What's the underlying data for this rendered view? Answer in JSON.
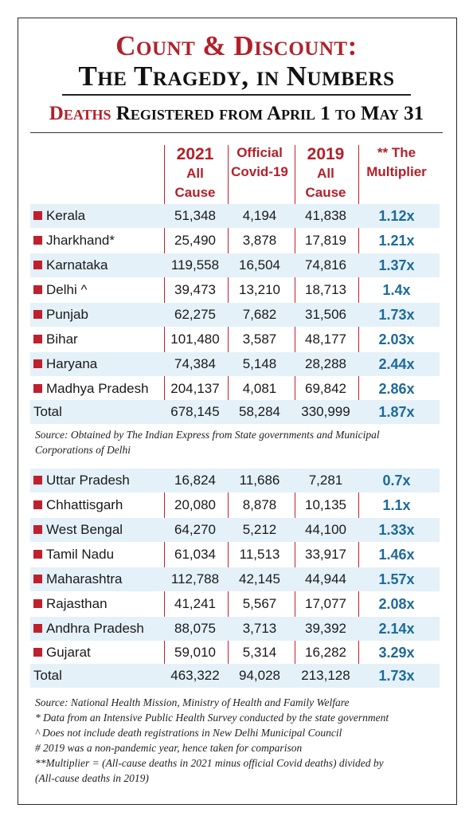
{
  "header": {
    "title_line1": "Count & Discount:",
    "title_line2": "The Tragedy, in Numbers",
    "subtitle_red": "Deaths",
    "subtitle_rest": " Registered from April 1 to May 31"
  },
  "columns": {
    "c1_big": "2021",
    "c1_small1": "All",
    "c1_small2": "Cause",
    "c2_line1": "Official",
    "c2_line2": "Covid-19",
    "c3_big": "2019",
    "c3_small1": "All",
    "c3_small2": "Cause",
    "c4_line1": "** The",
    "c4_line2": "Multiplier"
  },
  "table1": {
    "rows": [
      {
        "state": "Kerala",
        "y2021": "51,348",
        "covid": "4,194",
        "y2019": "41,838",
        "mult": "1.12x"
      },
      {
        "state": "Jharkhand*",
        "y2021": "25,490",
        "covid": "3,878",
        "y2019": "17,819",
        "mult": "1.21x"
      },
      {
        "state": "Karnataka",
        "y2021": "119,558",
        "covid": "16,504",
        "y2019": "74,816",
        "mult": "1.37x"
      },
      {
        "state": "Delhi ^",
        "y2021": "39,473",
        "covid": "13,210",
        "y2019": "18,713",
        "mult": "1.4x"
      },
      {
        "state": "Punjab",
        "y2021": "62,275",
        "covid": "7,682",
        "y2019": "31,506",
        "mult": "1.73x"
      },
      {
        "state": "Bihar",
        "y2021": "101,480",
        "covid": "3,587",
        "y2019": "48,177",
        "mult": "2.03x"
      },
      {
        "state": "Haryana",
        "y2021": "74,384",
        "covid": "5,148",
        "y2019": "28,288",
        "mult": "2.44x"
      },
      {
        "state": "Madhya Pradesh",
        "y2021": "204,137",
        "covid": "4,081",
        "y2019": "69,842",
        "mult": "2.86x"
      }
    ],
    "total": {
      "label": "Total",
      "y2021": "678,145",
      "covid": "58,284",
      "y2019": "330,999",
      "mult": "1.87x"
    },
    "source_line1": "Source: Obtained by The Indian Express from State governments and Municipal",
    "source_line2": "Corporations of Delhi"
  },
  "table2": {
    "rows": [
      {
        "state": "Uttar Pradesh",
        "y2021": "16,824",
        "covid": "11,686",
        "y2019": "7,281",
        "mult": "0.7x"
      },
      {
        "state": "Chhattisgarh",
        "y2021": "20,080",
        "covid": "8,878",
        "y2019": "10,135",
        "mult": "1.1x"
      },
      {
        "state": "West Bengal",
        "y2021": "64,270",
        "covid": "5,212",
        "y2019": "44,100",
        "mult": "1.33x"
      },
      {
        "state": "Tamil Nadu",
        "y2021": "61,034",
        "covid": "11,513",
        "y2019": "33,917",
        "mult": "1.46x"
      },
      {
        "state": "Maharashtra",
        "y2021": "112,788",
        "covid": "42,145",
        "y2019": "44,944",
        "mult": "1.57x"
      },
      {
        "state": "Rajasthan",
        "y2021": "41,241",
        "covid": "5,567",
        "y2019": "17,077",
        "mult": "2.08x"
      },
      {
        "state": "Andhra Pradesh",
        "y2021": "88,075",
        "covid": "3,713",
        "y2019": "39,392",
        "mult": "2.14x"
      },
      {
        "state": "Gujarat",
        "y2021": "59,010",
        "covid": "5,314",
        "y2019": "16,282",
        "mult": "3.29x"
      }
    ],
    "total": {
      "label": "Total",
      "y2021": "463,322",
      "covid": "94,028",
      "y2019": "213,128",
      "mult": "1.73x"
    }
  },
  "footnotes": [
    "Source: National Health Mission, Ministry of Health and Family Welfare",
    "* Data from an Intensive Public Health Survey conducted by the state government",
    "^ Does not include death registrations in New Delhi Municipal Council",
    "# 2019 was a non-pandemic year, hence taken for comparison",
    "**Multiplier = (All-cause deaths in 2021 minus official Covid deaths) divided by",
    "(All-cause deaths in 2019)"
  ],
  "colors": {
    "accent_red": "#b3202a",
    "multiplier_blue": "#1d6a9a",
    "row_shade": "#e4f1f8"
  }
}
